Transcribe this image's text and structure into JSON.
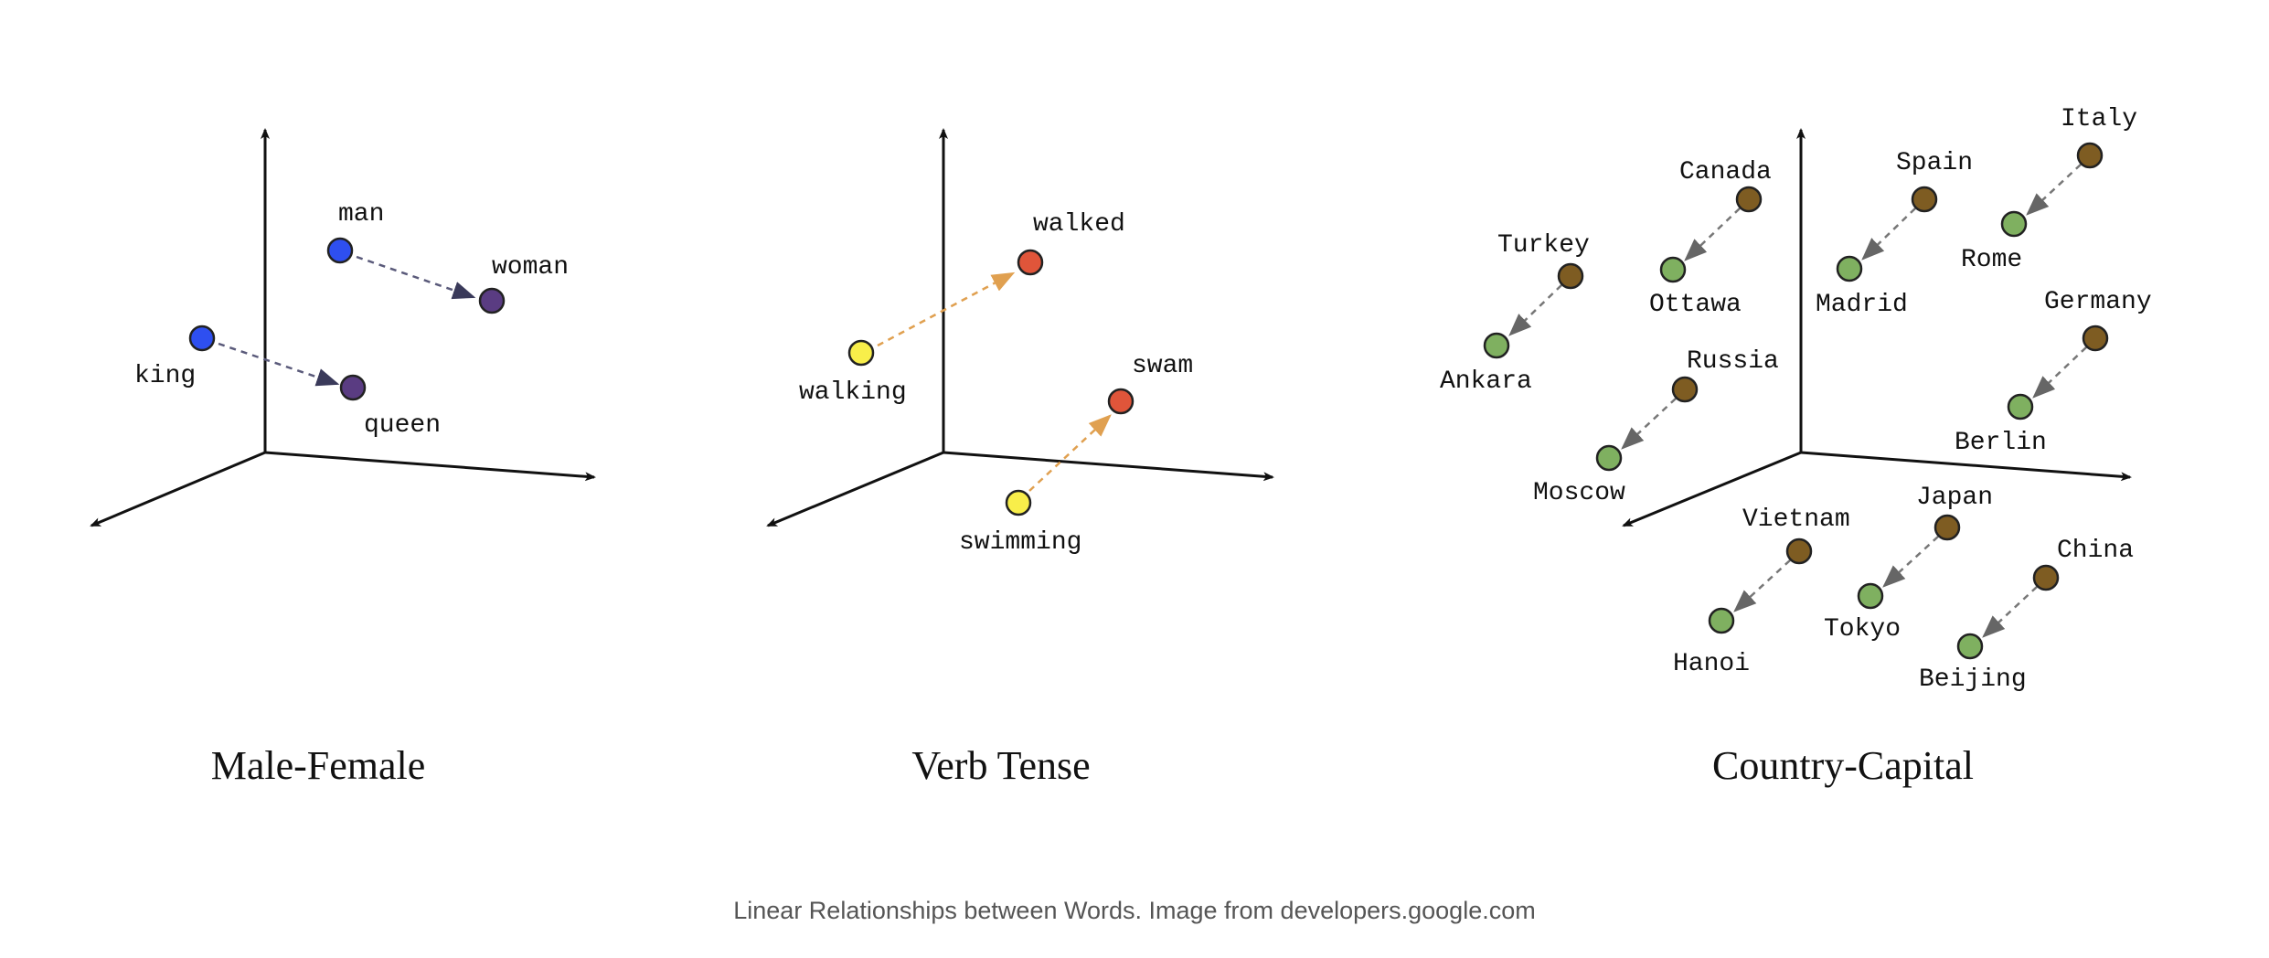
{
  "colors": {
    "axis": "#111111",
    "male": "#2e4ff0",
    "female": "#5a3c82",
    "mf_arrow": "#5a5a7a",
    "verb_base": "#f8ee4a",
    "verb_past": "#e0553a",
    "verb_arrow": "#e0a050",
    "country": "#7e5c22",
    "capital": "#7fb060",
    "cc_arrow": "#777777",
    "dot_stroke": "#222222"
  },
  "panels": [
    {
      "title": "Male-Female",
      "pairs": [
        {
          "from": "man",
          "to": "woman"
        },
        {
          "from": "king",
          "to": "queen"
        }
      ]
    },
    {
      "title": "Verb Tense",
      "pairs": [
        {
          "from": "walking",
          "to": "walked"
        },
        {
          "from": "swimming",
          "to": "swam"
        }
      ]
    },
    {
      "title": "Country-Capital",
      "pairs": [
        {
          "from": "Turkey",
          "to": "Ankara"
        },
        {
          "from": "Canada",
          "to": "Ottawa"
        },
        {
          "from": "Spain",
          "to": "Madrid"
        },
        {
          "from": "Italy",
          "to": "Rome"
        },
        {
          "from": "Russia",
          "to": "Moscow"
        },
        {
          "from": "Germany",
          "to": "Berlin"
        },
        {
          "from": "Vietnam",
          "to": "Hanoi"
        },
        {
          "from": "Japan",
          "to": "Tokyo"
        },
        {
          "from": "China",
          "to": "Beijing"
        }
      ]
    }
  ],
  "caption": "Linear Relationships between Words. Image from developers.google.com"
}
